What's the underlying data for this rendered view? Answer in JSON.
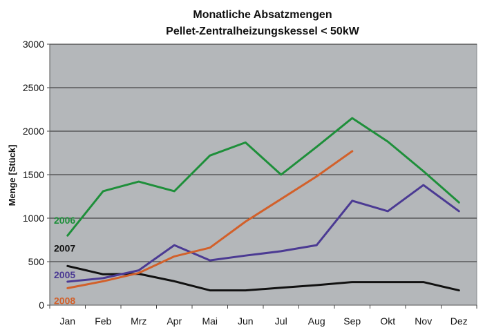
{
  "chart_data": {
    "type": "line",
    "title": "Monatliche Absatzmengen",
    "subtitle": "Pellet-Zentralheizungskessel < 50kW",
    "xlabel": "",
    "ylabel": "Menge [Stück]",
    "categories": [
      "Jan",
      "Feb",
      "Mrz",
      "Apr",
      "Mai",
      "Jun",
      "Jul",
      "Aug",
      "Sep",
      "Okt",
      "Nov",
      "Dez"
    ],
    "ylim": [
      0,
      3000
    ],
    "yticks": [
      "0",
      "500",
      "1000",
      "1500",
      "2000",
      "2500",
      "3000"
    ],
    "grid": true,
    "plot_background": "#b4b7ba",
    "series": [
      {
        "name": "2006",
        "color": "#1e8f3a",
        "values": [
          800,
          1310,
          1420,
          1310,
          1720,
          1870,
          1500,
          1820,
          2150,
          1880,
          1540,
          1180
        ]
      },
      {
        "name": "2007",
        "color": "#111111",
        "values": [
          450,
          355,
          360,
          275,
          170,
          170,
          200,
          230,
          265,
          265,
          265,
          170
        ]
      },
      {
        "name": "2005",
        "color": "#4b3a93",
        "values": [
          270,
          310,
          400,
          690,
          515,
          570,
          620,
          690,
          1200,
          1080,
          1380,
          1080
        ]
      },
      {
        "name": "2008",
        "color": "#d2602a",
        "values": [
          195,
          275,
          370,
          560,
          660,
          960,
          1220,
          1480,
          1770,
          null,
          null,
          null
        ]
      }
    ]
  }
}
